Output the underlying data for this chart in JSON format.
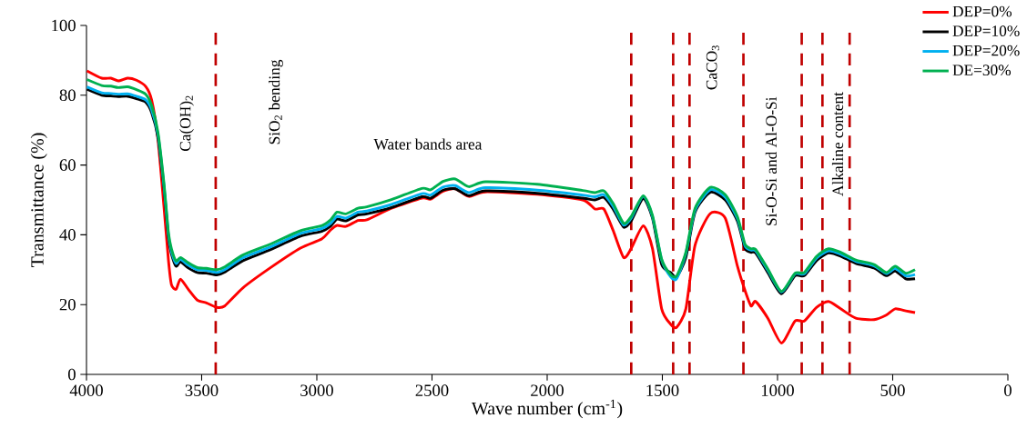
{
  "chart_data": {
    "type": "line",
    "xlabel": "Wave number (cm$^{-1}$)",
    "ylabel": "Transmittance (%)",
    "xlim": [
      4000,
      0
    ],
    "ylim": [
      0,
      100
    ],
    "xticks": [
      4000,
      3500,
      3000,
      2500,
      2000,
      1500,
      1000,
      500,
      0
    ],
    "yticks": [
      0,
      20,
      40,
      60,
      80,
      100
    ],
    "grid": false,
    "legend": "top right",
    "line_style": "solid",
    "x": [
      3998,
      3934,
      3894,
      3862,
      3822,
      3783,
      3743,
      3717,
      3690,
      3664,
      3644,
      3631,
      3611,
      3592,
      3558,
      3519,
      3479,
      3434,
      3400,
      3321,
      3203,
      3071,
      2979,
      2940,
      2912,
      2874,
      2821,
      2783,
      2676,
      2544,
      2506,
      2452,
      2399,
      2340,
      2268,
      2043,
      1846,
      1793,
      1754,
      1714,
      1668,
      1635,
      1583,
      1543,
      1503,
      1464,
      1438,
      1398,
      1358,
      1292,
      1227,
      1174,
      1141,
      1115,
      1095,
      1042,
      983,
      924,
      884,
      831,
      779,
      726,
      660,
      581,
      528,
      489,
      443,
      403
    ],
    "series": [
      {
        "name": "DEP=0%",
        "color": "#ff0000",
        "values": [
          87,
          84.9,
          84.9,
          84.1,
          84.9,
          84.3,
          82.5,
          78.6,
          67.4,
          48.3,
          32.6,
          25.7,
          24.4,
          27.3,
          24.4,
          21.3,
          20.5,
          19.2,
          19.6,
          24.8,
          30.5,
          36.2,
          38.8,
          41.4,
          42.7,
          42.4,
          44.1,
          44.3,
          47.6,
          50.5,
          50.2,
          52.5,
          53.2,
          51,
          52.3,
          51.6,
          50,
          47.4,
          47.4,
          41.3,
          33.5,
          36.1,
          42.6,
          36.1,
          18.8,
          14.4,
          13.5,
          18.8,
          37,
          46.1,
          44.8,
          31,
          24,
          19.6,
          20.9,
          16.1,
          9,
          15.3,
          15.3,
          19.2,
          20.9,
          18.8,
          16.1,
          15.7,
          17,
          18.8,
          18.2,
          17.7
        ]
      },
      {
        "name": "DEP=10%",
        "color": "#000000",
        "values": [
          81.7,
          80,
          79.8,
          79.6,
          79.7,
          79,
          78,
          75,
          68,
          53.5,
          39,
          34.5,
          31,
          32.3,
          30.5,
          29.2,
          29,
          28.5,
          29.3,
          32.6,
          35.7,
          39.6,
          41,
          42.5,
          44.5,
          44,
          45.7,
          46,
          47.8,
          50.9,
          50.5,
          52.8,
          53.2,
          51.2,
          52.6,
          51.9,
          50.5,
          50,
          50.7,
          47.4,
          42.2,
          44,
          50.4,
          44.8,
          31.5,
          29.2,
          27.9,
          33.5,
          46.5,
          52.2,
          50,
          43.9,
          36.1,
          35,
          34.8,
          29.2,
          23.1,
          28.3,
          28.3,
          32.6,
          34.8,
          33.9,
          31.8,
          30.5,
          28.3,
          29.6,
          27.4,
          27.4
        ]
      },
      {
        "name": "DEP=20%",
        "color": "#00b0f0",
        "values": [
          82.4,
          80.7,
          80.5,
          80.3,
          80.4,
          79.7,
          78.7,
          75.8,
          68.8,
          54.3,
          39.8,
          35.2,
          31.8,
          33,
          31.3,
          30,
          29.8,
          29.2,
          30,
          33.4,
          36.5,
          40.4,
          41.8,
          43.3,
          45.3,
          44.8,
          46.5,
          46.8,
          48.7,
          51.8,
          51.4,
          53.7,
          54.1,
          52.1,
          53.5,
          52.8,
          51.4,
          50.9,
          51.5,
          48.2,
          42.8,
          44.8,
          51,
          45.3,
          32.8,
          28,
          27.4,
          34.6,
          47,
          52.9,
          50.8,
          44.6,
          36.8,
          35.6,
          35.4,
          29.8,
          23.6,
          28.8,
          28.8,
          33.3,
          35.4,
          34.5,
          32.4,
          31.1,
          28.9,
          30.3,
          28.2,
          28.6
        ]
      },
      {
        "name": "DE=30%",
        "color": "#00b050",
        "values": [
          84.5,
          82.8,
          82.6,
          82.2,
          82.4,
          81.6,
          80.3,
          77,
          69.5,
          55,
          40.5,
          36,
          32.5,
          33.5,
          32,
          30.6,
          30.4,
          30,
          30.8,
          34.2,
          37.3,
          41.2,
          42.6,
          44.3,
          46.5,
          46,
          47.6,
          48,
          50.1,
          53.3,
          52.9,
          55.3,
          56,
          53.8,
          55.2,
          54.5,
          52.7,
          52.1,
          52.6,
          49,
          43.3,
          45.3,
          51.2,
          45.6,
          33,
          28.6,
          28.2,
          35,
          47.6,
          53.6,
          51.5,
          45.2,
          37.3,
          36,
          35.8,
          30.2,
          23.8,
          29,
          29.2,
          33.8,
          36,
          35,
          32.8,
          31.5,
          29.2,
          31,
          29,
          30
        ]
      }
    ],
    "ref_lines": [
      {
        "axis": "x",
        "value": 3439,
        "color": "#c00000",
        "line_style": "dashed"
      },
      {
        "axis": "x",
        "value": 1635,
        "color": "#c00000",
        "line_style": "dashed"
      },
      {
        "axis": "x",
        "value": 1453,
        "color": "#c00000",
        "line_style": "dashed"
      },
      {
        "axis": "x",
        "value": 1382,
        "color": "#c00000",
        "line_style": "dashed"
      },
      {
        "axis": "x",
        "value": 1148,
        "color": "#c00000",
        "line_style": "dashed"
      },
      {
        "axis": "x",
        "value": 895,
        "color": "#c00000",
        "line_style": "dashed"
      },
      {
        "axis": "x",
        "value": 805,
        "color": "#c00000",
        "line_style": "dashed"
      },
      {
        "axis": "x",
        "value": 687,
        "color": "#c00000",
        "line_style": "dashed"
      }
    ],
    "annotations": [
      "Ca(OH)$_{2}$",
      "SiO$_{2}$ bending",
      "Water bands area",
      "CaCO$_{3}$",
      "Si-O-Si and Al-O-Si",
      "Alkaline content"
    ]
  }
}
